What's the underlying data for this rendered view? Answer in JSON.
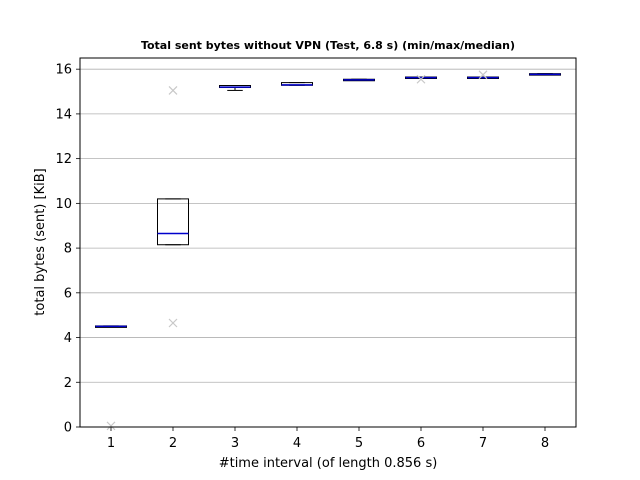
{
  "chart_data": {
    "type": "boxplot",
    "title": "Total sent bytes without VPN (Test, 6.8 s) (min/max/median)",
    "xlabel": "#time interval (of length 0.856 s)",
    "ylabel": "total bytes (sent) [KiB]",
    "ylim": [
      0,
      16.5
    ],
    "yticks": [
      0,
      2,
      4,
      6,
      8,
      10,
      12,
      14,
      16
    ],
    "grid": "horizontal",
    "colors": {
      "box": "#000000",
      "median": "#0000cc",
      "outlier": "#c8c8c8",
      "grid": "#b0b0b0"
    },
    "categories": [
      "1",
      "2",
      "3",
      "4",
      "5",
      "6",
      "7",
      "8"
    ],
    "boxes": [
      {
        "x": "1",
        "min": 4.48,
        "q1": 4.48,
        "median": 4.5,
        "q3": 4.52,
        "max": 4.52,
        "outliers": [
          0.05
        ]
      },
      {
        "x": "2",
        "min": 8.15,
        "q1": 8.15,
        "median": 8.65,
        "q3": 10.2,
        "max": 10.2,
        "outliers": [
          15.05,
          4.65
        ]
      },
      {
        "x": "3",
        "min": 15.05,
        "q1": 15.18,
        "median": 15.2,
        "q3": 15.27,
        "max": 15.27,
        "outliers": []
      },
      {
        "x": "4",
        "min": 15.28,
        "q1": 15.28,
        "median": 15.3,
        "q3": 15.4,
        "max": 15.4,
        "outliers": []
      },
      {
        "x": "5",
        "min": 15.5,
        "q1": 15.5,
        "median": 15.52,
        "q3": 15.55,
        "max": 15.55,
        "outliers": []
      },
      {
        "x": "6",
        "min": 15.6,
        "q1": 15.6,
        "median": 15.62,
        "q3": 15.65,
        "max": 15.65,
        "outliers": [
          15.55
        ]
      },
      {
        "x": "7",
        "min": 15.6,
        "q1": 15.6,
        "median": 15.62,
        "q3": 15.65,
        "max": 15.65,
        "outliers": [
          15.75
        ]
      },
      {
        "x": "8",
        "min": 15.75,
        "q1": 15.75,
        "median": 15.77,
        "q3": 15.8,
        "max": 15.8,
        "outliers": []
      }
    ]
  }
}
